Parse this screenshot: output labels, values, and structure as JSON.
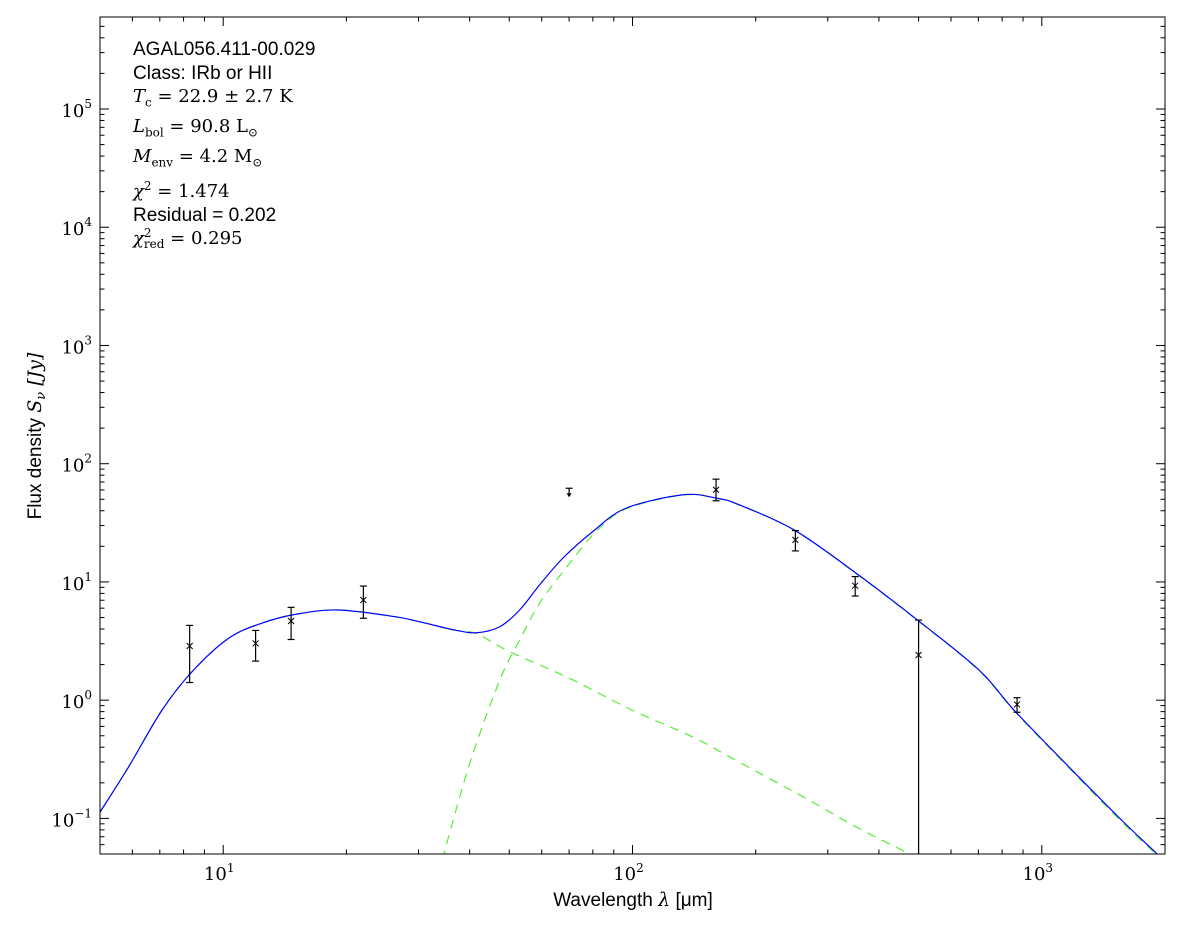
{
  "chart_data": {
    "type": "line",
    "xscale": "log",
    "yscale": "log",
    "xlim": [
      5,
      2000
    ],
    "ylim": [
      0.05,
      600000
    ],
    "grid": false,
    "xlabel": {
      "text": "Wavelength ",
      "symbol": "λ",
      "unit": " [μm]"
    },
    "ylabel": {
      "text": "Flux density ",
      "symbol": "S",
      "sub": "ν",
      "unit": " [Jy]"
    },
    "x_ticks": [
      {
        "value": 10,
        "base": "10",
        "exp": "1"
      },
      {
        "value": 100,
        "base": "10",
        "exp": "2"
      },
      {
        "value": 1000,
        "base": "10",
        "exp": "3"
      }
    ],
    "y_ticks": [
      {
        "value": 0.1,
        "base": "10",
        "exp": "−1"
      },
      {
        "value": 1,
        "base": "10",
        "exp": "0"
      },
      {
        "value": 10,
        "base": "10",
        "exp": "1"
      },
      {
        "value": 100,
        "base": "10",
        "exp": "2"
      },
      {
        "value": 1000,
        "base": "10",
        "exp": "3"
      },
      {
        "value": 10000,
        "base": "10",
        "exp": "4"
      },
      {
        "value": 100000,
        "base": "10",
        "exp": "5"
      }
    ],
    "annotations": {
      "source": "AGAL056.411-00.029",
      "class": "Class: IRb or HII",
      "tc": {
        "sym": "T",
        "sub": "c",
        "rest": " = 22.9 ± 2.7 K"
      },
      "lbol": {
        "sym": "L",
        "sub": "bol",
        "rest": " = 90.8 L",
        "tail": "⊙"
      },
      "menv": {
        "sym": "M",
        "sub": "env",
        "rest": " = 4.2 M",
        "tail": "⊙"
      },
      "chi2": {
        "sym": "χ",
        "sup": "2",
        "rest": " = 1.474"
      },
      "residual": "Residual = 0.202",
      "chi2red": {
        "sym": "χ",
        "sup": "2",
        "sub": "red",
        "rest": " = 0.295"
      }
    },
    "series": [
      {
        "style": "solid",
        "color": "#0000ff",
        "points": [
          [
            5.0,
            0.113
          ],
          [
            5.87,
            0.272
          ],
          [
            7.08,
            0.82
          ],
          [
            8.39,
            1.74
          ],
          [
            10.3,
            3.33
          ],
          [
            12.4,
            4.47
          ],
          [
            15.0,
            5.32
          ],
          [
            19.1,
            5.79
          ],
          [
            26.3,
            5.08
          ],
          [
            30.2,
            4.6
          ],
          [
            36.8,
            3.92
          ],
          [
            41.6,
            3.72
          ],
          [
            47.4,
            4.18
          ],
          [
            53.0,
            5.79
          ],
          [
            59.3,
            9.44
          ],
          [
            67.6,
            15.9
          ],
          [
            80.0,
            26.7
          ],
          [
            96.5,
            42.1
          ],
          [
            133,
            54.6
          ],
          [
            160,
            51.2
          ],
          [
            182,
            45.0
          ],
          [
            248,
            27.6
          ],
          [
            348,
            12.2
          ],
          [
            497,
            4.76
          ],
          [
            702,
            1.8
          ],
          [
            862,
            0.8
          ],
          [
            1187,
            0.255
          ],
          [
            1570,
            0.096
          ],
          [
            1914,
            0.05
          ]
        ]
      },
      {
        "style": "dashed",
        "color": "#55ee33",
        "points": [
          [
            5.0,
            0.113
          ],
          [
            5.87,
            0.272
          ],
          [
            7.08,
            0.82
          ],
          [
            8.39,
            1.74
          ],
          [
            10.3,
            3.33
          ],
          [
            12.4,
            4.47
          ],
          [
            15.0,
            5.32
          ],
          [
            19.1,
            5.79
          ],
          [
            26.3,
            5.08
          ],
          [
            30.2,
            4.6
          ],
          [
            36.8,
            3.9
          ],
          [
            41.6,
            3.65
          ],
          [
            50.1,
            2.57
          ],
          [
            70.2,
            1.53
          ],
          [
            100,
            0.82
          ],
          [
            140,
            0.49
          ],
          [
            182,
            0.3
          ],
          [
            266,
            0.147
          ],
          [
            351,
            0.085
          ],
          [
            465,
            0.052
          ],
          [
            490,
            0.047
          ]
        ]
      },
      {
        "style": "dashed",
        "color": "#55ee33",
        "points": [
          [
            34.3,
            0.045
          ],
          [
            40.0,
            0.29
          ],
          [
            47.4,
            1.48
          ],
          [
            53.0,
            3.22
          ],
          [
            59.3,
            6.6
          ],
          [
            70.2,
            14.4
          ],
          [
            81.5,
            26.7
          ],
          [
            96.5,
            41.5
          ],
          [
            133,
            54.4
          ],
          [
            160,
            51.0
          ],
          [
            182,
            44.8
          ],
          [
            248,
            27.5
          ],
          [
            348,
            12.1
          ],
          [
            497,
            4.72
          ],
          [
            702,
            1.78
          ],
          [
            862,
            0.79
          ],
          [
            1187,
            0.25
          ],
          [
            1570,
            0.093
          ],
          [
            1950,
            0.046
          ]
        ]
      }
    ],
    "measurements": [
      {
        "x": 8.28,
        "y": 2.87,
        "err_low": 1.41,
        "err_high": 4.29
      },
      {
        "x": 12.0,
        "y": 3.02,
        "err_low": 2.14,
        "err_high": 3.89
      },
      {
        "x": 14.65,
        "y": 4.67,
        "err_low": 3.26,
        "err_high": 6.1
      },
      {
        "x": 22.0,
        "y": 7.03,
        "err_low": 4.93,
        "err_high": 9.23
      },
      {
        "x": 160,
        "y": 60.2,
        "err_low": 48.6,
        "err_high": 74
      },
      {
        "x": 250,
        "y": 22.7,
        "err_low": 18.3,
        "err_high": 27.2
      },
      {
        "x": 350,
        "y": 9.3,
        "err_low": 7.6,
        "err_high": 11.1
      },
      {
        "x": 500,
        "y": 2.41,
        "err_low": 0.0,
        "err_high": 4.76
      },
      {
        "x": 870,
        "y": 0.92,
        "err_low": 0.79,
        "err_high": 1.05
      }
    ],
    "upper_limits": [
      {
        "x": 70,
        "y": 62
      }
    ]
  }
}
